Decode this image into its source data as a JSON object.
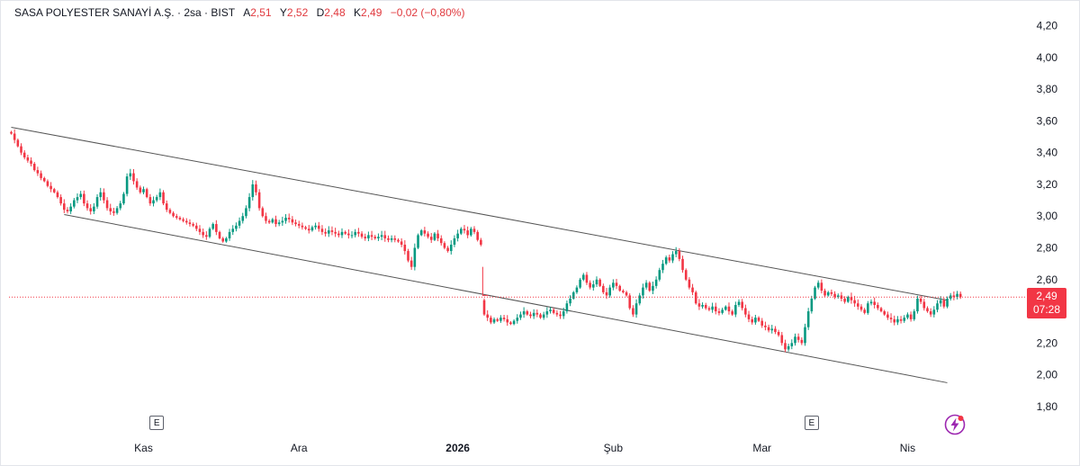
{
  "header": {
    "symbol": "SASA POLYESTER SANAYİ A.Ş.",
    "interval": "2sa",
    "exchange": "BIST",
    "separator": "·",
    "open_label": "A",
    "open": "2,51",
    "high_label": "Y",
    "high": "2,52",
    "low_label": "D",
    "low": "2,48",
    "close_label": "K",
    "close": "2,49",
    "change": "−0,02 (−0,80%)"
  },
  "price_tag": {
    "price": "2,49",
    "countdown": "07:28"
  },
  "markers": {
    "earnings_label": "E"
  },
  "icons": [
    "lightning-icon"
  ],
  "colors": {
    "up": "#089981",
    "down": "#f23645",
    "trendline": "#555555",
    "price_line": "#f23645",
    "bolt": "#9c27b0"
  },
  "chart_data": {
    "type": "candlestick",
    "ylim": [
      1.72,
      4.26
    ],
    "yticks": [
      "4,20",
      "4,00",
      "3,80",
      "3,60",
      "3,40",
      "3,20",
      "3,00",
      "2,80",
      "2,60",
      "2,40",
      "2,20",
      "2,00",
      "1,80"
    ],
    "ytick_values": [
      4.2,
      4.0,
      3.8,
      3.6,
      3.4,
      3.2,
      3.0,
      2.8,
      2.6,
      2.4,
      2.2,
      2.0,
      1.8
    ],
    "xticks": [
      {
        "label": "Kas",
        "bar": 40,
        "bold": false
      },
      {
        "label": "Ara",
        "bar": 87,
        "bold": false
      },
      {
        "label": "2026",
        "bar": 135,
        "bold": true
      },
      {
        "label": "Şub",
        "bar": 182,
        "bold": false
      },
      {
        "label": "Mar",
        "bar": 227,
        "bold": false
      },
      {
        "label": "Nis",
        "bar": 271,
        "bold": false
      }
    ],
    "earnings_bars": [
      44,
      242
    ],
    "last_price": 2.49,
    "gap_after_bar": 142,
    "gap_close": 2.45,
    "trendlines": [
      {
        "name": "upper",
        "from": {
          "bar": 0,
          "price": 3.56
        },
        "to": {
          "bar": 283,
          "price": 2.47
        }
      },
      {
        "name": "lower",
        "from": {
          "bar": 16,
          "price": 3.01
        },
        "to": {
          "bar": 283,
          "price": 1.95
        }
      }
    ],
    "closes": [
      3.52,
      3.48,
      3.44,
      3.4,
      3.37,
      3.35,
      3.33,
      3.29,
      3.27,
      3.24,
      3.22,
      3.19,
      3.17,
      3.15,
      3.12,
      3.08,
      3.04,
      3.03,
      3.06,
      3.1,
      3.12,
      3.14,
      3.08,
      3.05,
      3.03,
      3.06,
      3.12,
      3.15,
      3.1,
      3.05,
      3.03,
      3.02,
      3.05,
      3.08,
      3.14,
      3.25,
      3.27,
      3.22,
      3.18,
      3.15,
      3.17,
      3.12,
      3.08,
      3.1,
      3.12,
      3.15,
      3.08,
      3.04,
      3.02,
      3.0,
      2.99,
      2.98,
      2.97,
      2.96,
      2.95,
      2.94,
      2.92,
      2.9,
      2.88,
      2.87,
      2.92,
      2.95,
      2.9,
      2.86,
      2.84,
      2.86,
      2.9,
      2.92,
      2.94,
      2.97,
      3.0,
      3.05,
      3.12,
      3.2,
      3.15,
      3.05,
      3.0,
      2.97,
      2.96,
      2.98,
      2.95,
      2.96,
      2.97,
      2.99,
      2.98,
      2.96,
      2.95,
      2.94,
      2.93,
      2.92,
      2.91,
      2.93,
      2.94,
      2.92,
      2.9,
      2.89,
      2.91,
      2.9,
      2.89,
      2.88,
      2.9,
      2.89,
      2.88,
      2.88,
      2.9,
      2.89,
      2.87,
      2.86,
      2.88,
      2.87,
      2.86,
      2.87,
      2.88,
      2.86,
      2.85,
      2.86,
      2.85,
      2.84,
      2.82,
      2.78,
      2.72,
      2.68,
      2.8,
      2.88,
      2.91,
      2.89,
      2.87,
      2.85,
      2.89,
      2.86,
      2.83,
      2.8,
      2.78,
      2.82,
      2.86,
      2.89,
      2.92,
      2.91,
      2.88,
      2.92,
      2.9,
      2.85,
      2.82,
      2.38,
      2.36,
      2.33,
      2.35,
      2.34,
      2.36,
      2.35,
      2.33,
      2.32,
      2.34,
      2.36,
      2.38,
      2.4,
      2.38,
      2.37,
      2.39,
      2.38,
      2.36,
      2.38,
      2.4,
      2.41,
      2.39,
      2.38,
      2.37,
      2.4,
      2.45,
      2.48,
      2.52,
      2.55,
      2.6,
      2.63,
      2.58,
      2.55,
      2.57,
      2.6,
      2.56,
      2.52,
      2.5,
      2.55,
      2.58,
      2.56,
      2.53,
      2.52,
      2.5,
      2.42,
      2.38,
      2.45,
      2.5,
      2.55,
      2.58,
      2.53,
      2.56,
      2.6,
      2.66,
      2.7,
      2.74,
      2.72,
      2.76,
      2.78,
      2.73,
      2.66,
      2.6,
      2.55,
      2.52,
      2.45,
      2.43,
      2.44,
      2.42,
      2.41,
      2.43,
      2.4,
      2.39,
      2.41,
      2.43,
      2.4,
      2.38,
      2.44,
      2.46,
      2.42,
      2.38,
      2.35,
      2.33,
      2.36,
      2.34,
      2.31,
      2.3,
      2.28,
      2.29,
      2.27,
      2.25,
      2.2,
      2.16,
      2.18,
      2.2,
      2.24,
      2.22,
      2.2,
      2.3,
      2.4,
      2.48,
      2.55,
      2.58,
      2.53,
      2.5,
      2.52,
      2.51,
      2.49,
      2.5,
      2.48,
      2.46,
      2.49,
      2.47,
      2.45,
      2.43,
      2.41,
      2.39,
      2.45,
      2.46,
      2.44,
      2.42,
      2.4,
      2.38,
      2.36,
      2.35,
      2.33,
      2.35,
      2.34,
      2.36,
      2.38,
      2.35,
      2.4,
      2.48,
      2.46,
      2.42,
      2.4,
      2.38,
      2.41,
      2.45,
      2.47,
      2.43,
      2.48,
      2.5,
      2.49,
      2.51,
      2.49
    ]
  }
}
